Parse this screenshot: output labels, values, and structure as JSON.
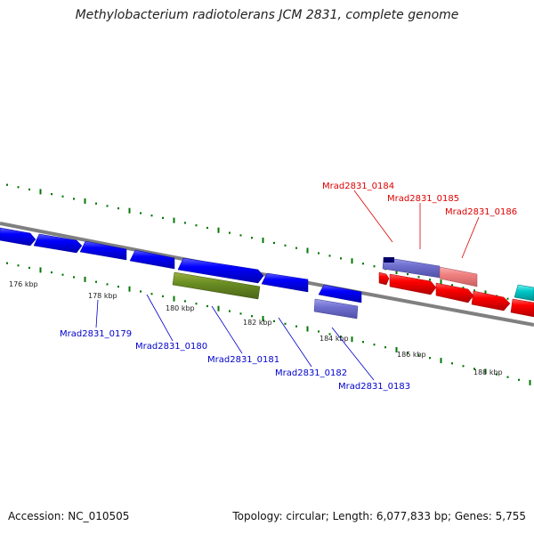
{
  "title": "Methylobacterium radiotolerans JCM 2831, complete genome",
  "footer": {
    "accession": "Accession: NC_010505",
    "summary": "Topology: circular; Length: 6,077,833 bp; Genes: 5,755"
  },
  "scale": {
    "ticks": [
      {
        "kbp": 176,
        "label": "176 kbp"
      },
      {
        "kbp": 178,
        "label": "178 kbp"
      },
      {
        "kbp": 180,
        "label": "180 kbp"
      },
      {
        "kbp": 182,
        "label": "182 kbp"
      },
      {
        "kbp": 184,
        "label": "184 kbp"
      },
      {
        "kbp": 186,
        "label": "186 kbp"
      },
      {
        "kbp": 188,
        "label": "188 kbp"
      }
    ]
  },
  "colors": {
    "backbone": "#808080",
    "forward_gene": "#0000ff",
    "reverse_gene": "#0000ff",
    "pseudo_gene": "#6b8e23",
    "highlight_gene": "#7070d0",
    "red_gene": "#ff0000",
    "pink_gene": "#f08080",
    "cyan_gene": "#00c8c8",
    "label_blue": "#0000cc",
    "label_red": "#dd0000",
    "tick_green": "#007700"
  },
  "gene_labels": [
    {
      "name": "Mrad2831_0179",
      "color": "blue"
    },
    {
      "name": "Mrad2831_0180",
      "color": "blue"
    },
    {
      "name": "Mrad2831_0181",
      "color": "blue"
    },
    {
      "name": "Mrad2831_0182",
      "color": "blue"
    },
    {
      "name": "Mrad2831_0183",
      "color": "blue"
    },
    {
      "name": "Mrad2831_0184",
      "color": "red"
    },
    {
      "name": "Mrad2831_0185",
      "color": "red"
    },
    {
      "name": "Mrad2831_0186",
      "color": "red"
    }
  ]
}
